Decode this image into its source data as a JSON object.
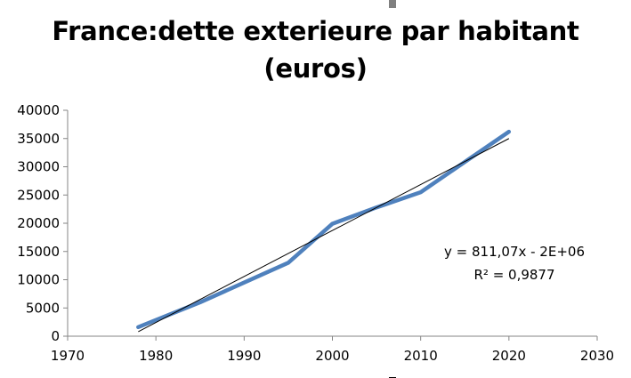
{
  "chart_data": {
    "type": "line",
    "title": "France:dette exterieure par habitant (euros)",
    "title_lines": [
      "France:dette exterieure par habitant",
      "(euros)"
    ],
    "xlabel": "",
    "ylabel": "",
    "x_ticks": [
      1970,
      1980,
      1990,
      2000,
      2010,
      2020,
      2030
    ],
    "y_ticks": [
      0,
      5000,
      10000,
      15000,
      20000,
      25000,
      30000,
      35000,
      40000
    ],
    "xlim": [
      1970,
      2030
    ],
    "ylim": [
      0,
      40000
    ],
    "grid": false,
    "series": [
      {
        "x": [
          1978,
          1985,
          1990,
          1995,
          2000,
          2005,
          2010,
          2020
        ],
        "y": [
          1600,
          6000,
          9500,
          13000,
          19900,
          22800,
          25500,
          36200
        ],
        "color": "#4F81BD"
      }
    ],
    "trendline": {
      "type": "linear",
      "x": [
        1978,
        2020
      ],
      "y": [
        800,
        35000
      ],
      "color": "#000000",
      "equation": "y = 811,07x - 2E+06",
      "r_squared": "R² = 0,9877"
    }
  }
}
